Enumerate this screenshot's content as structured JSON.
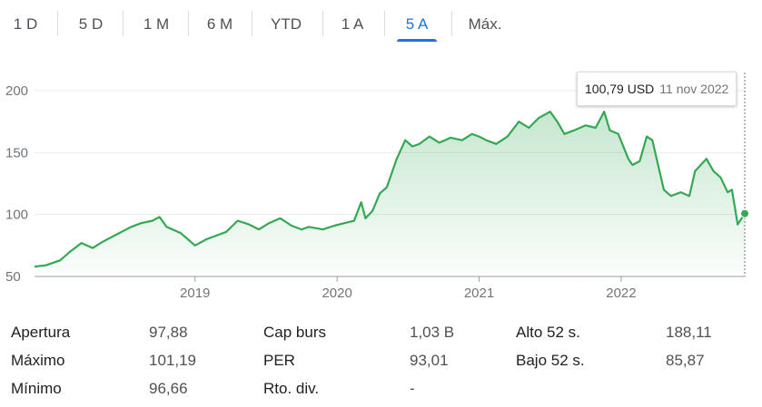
{
  "tabs": [
    {
      "label": "1 D",
      "active": false
    },
    {
      "label": "5 D",
      "active": false
    },
    {
      "label": "1 M",
      "active": false
    },
    {
      "label": "6 M",
      "active": false
    },
    {
      "label": "YTD",
      "active": false
    },
    {
      "label": "1 A",
      "active": false
    },
    {
      "label": "5 A",
      "active": true
    },
    {
      "label": "Máx.",
      "active": false
    }
  ],
  "tooltip": {
    "price": "100,79 USD",
    "date": "11 nov 2022"
  },
  "colors": {
    "accent": "#1a73e8",
    "line": "#34a853",
    "grid": "#ebebeb",
    "text_muted": "#70757a"
  },
  "chart_data": {
    "type": "area",
    "title": "",
    "xlabel": "",
    "ylabel": "",
    "x_ticks": [
      "2019",
      "2020",
      "2021",
      "2022"
    ],
    "y_ticks": [
      50,
      100,
      150,
      200
    ],
    "ylim": [
      50,
      200
    ],
    "xlim": [
      2017.87,
      2022.87
    ],
    "grid": true,
    "series": [
      {
        "x": [
          2017.87,
          2017.95,
          2018.05,
          2018.12,
          2018.2,
          2018.28,
          2018.35,
          2018.45,
          2018.55,
          2018.62,
          2018.7,
          2018.75,
          2018.8,
          2018.9,
          2018.95,
          2019.0,
          2019.08,
          2019.15,
          2019.22,
          2019.3,
          2019.38,
          2019.45,
          2019.52,
          2019.6,
          2019.68,
          2019.75,
          2019.8,
          2019.9,
          2019.98,
          2020.05,
          2020.12,
          2020.17,
          2020.2,
          2020.25,
          2020.3,
          2020.35,
          2020.42,
          2020.48,
          2020.53,
          2020.58,
          2020.65,
          2020.72,
          2020.8,
          2020.88,
          2020.95,
          2021.0,
          2021.05,
          2021.12,
          2021.2,
          2021.28,
          2021.35,
          2021.42,
          2021.5,
          2021.55,
          2021.6,
          2021.67,
          2021.75,
          2021.82,
          2021.88,
          2021.92,
          2021.98,
          2022.05,
          2022.08,
          2022.13,
          2022.18,
          2022.22,
          2022.3,
          2022.35,
          2022.42,
          2022.48,
          2022.52,
          2022.6,
          2022.65,
          2022.7,
          2022.75,
          2022.78,
          2022.82,
          2022.87
        ],
        "values": [
          58,
          59,
          63,
          70,
          77,
          73,
          78,
          84,
          90,
          93,
          95,
          98,
          90,
          85,
          80,
          75,
          80,
          83,
          86,
          95,
          92,
          88,
          93,
          97,
          91,
          88,
          90,
          88,
          91,
          93,
          95,
          110,
          97,
          103,
          117,
          122,
          145,
          160,
          155,
          157,
          163,
          158,
          162,
          160,
          165,
          163,
          160,
          157,
          163,
          175,
          170,
          178,
          183,
          175,
          165,
          168,
          172,
          170,
          183,
          168,
          165,
          145,
          140,
          143,
          163,
          160,
          120,
          115,
          118,
          115,
          135,
          145,
          135,
          130,
          118,
          120,
          92,
          100.79
        ]
      }
    ]
  },
  "stats": [
    {
      "label": "Apertura",
      "value": "97,88"
    },
    {
      "label": "Cap burs",
      "value": "1,03 B"
    },
    {
      "label": "Alto 52 s.",
      "value": "188,11"
    },
    {
      "label": "Máximo",
      "value": "101,19"
    },
    {
      "label": "PER",
      "value": "93,01"
    },
    {
      "label": "Bajo 52 s.",
      "value": "85,87"
    },
    {
      "label": "Mínimo",
      "value": "96,66"
    },
    {
      "label": "Rto. div.",
      "value": "-"
    }
  ]
}
